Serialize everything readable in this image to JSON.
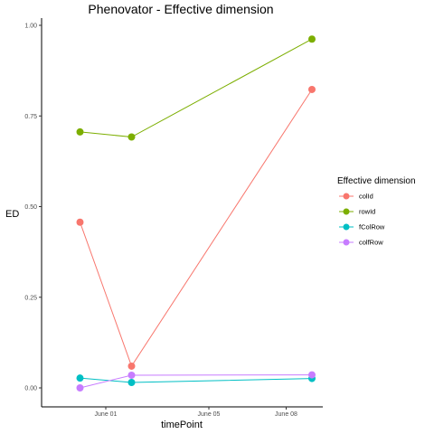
{
  "chart_data": {
    "type": "line",
    "title": "Phenovator - Effective dimension",
    "xlabel": "timePoint",
    "ylabel": "ED",
    "x_type": "date",
    "x": [
      "2018-05-31",
      "2018-06-02",
      "2018-06-09"
    ],
    "xlim": [
      "2018-05-30",
      "2018-06-09"
    ],
    "xticks": [
      {
        "date": "2018-06-01",
        "label": "June 01"
      },
      {
        "date": "2018-06-05",
        "label": "June 05"
      },
      {
        "date": "2018-06-08",
        "label": "June 08"
      }
    ],
    "ylim": [
      0,
      1
    ],
    "yticks": [
      "0.00",
      "0.25",
      "0.50",
      "0.75",
      "1.00"
    ],
    "grid": false,
    "legend": {
      "title": "Effective dimension",
      "position": "right"
    },
    "series": [
      {
        "name": "colId",
        "color": "#F8766D",
        "values": [
          0.457,
          0.06,
          0.823
        ]
      },
      {
        "name": "rowId",
        "color": "#7CAE00",
        "values": [
          0.706,
          0.692,
          0.962
        ]
      },
      {
        "name": "fColRow",
        "color": "#00BFC4",
        "values": [
          0.027,
          0.015,
          0.026
        ]
      },
      {
        "name": "colfRow",
        "color": "#C77CFF",
        "values": [
          0.0,
          0.035,
          0.036
        ]
      }
    ]
  }
}
